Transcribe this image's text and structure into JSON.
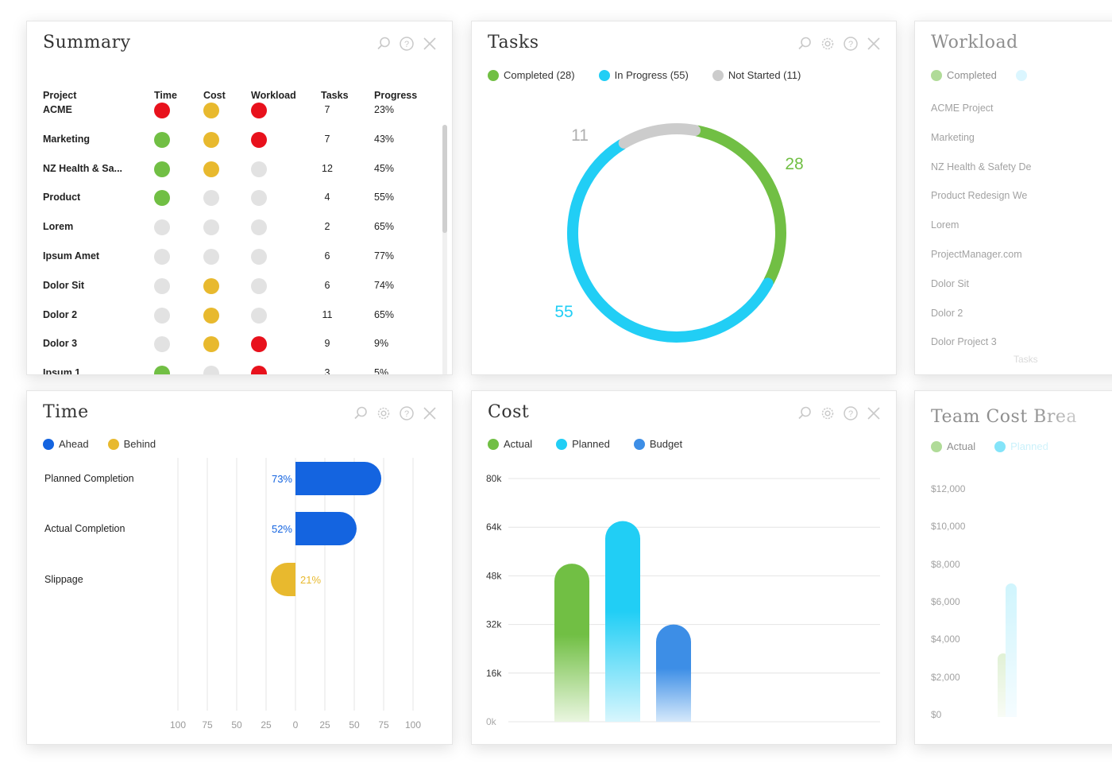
{
  "colors": {
    "red": "#e8111c",
    "yellow": "#e8b92e",
    "green": "#71bf44",
    "grey": "#e2e2e2",
    "cyan": "#21cef5",
    "blue": "#1464e0",
    "budget": "#3d8ee6",
    "donut_grey": "#cccccc"
  },
  "icons": [
    "search-icon",
    "settings-icon",
    "help-icon",
    "close-icon"
  ],
  "summary": {
    "title": "Summary",
    "columns": [
      "Project",
      "Time",
      "Cost",
      "Workload",
      "Tasks",
      "Progress"
    ],
    "rows": [
      {
        "project": "ACME",
        "time": "red",
        "cost": "yellow",
        "workload": "red",
        "tasks": "7",
        "progress": "23%"
      },
      {
        "project": "Marketing",
        "time": "green",
        "cost": "yellow",
        "workload": "red",
        "tasks": "7",
        "progress": "43%"
      },
      {
        "project": "NZ Health & Sa...",
        "time": "green",
        "cost": "yellow",
        "workload": "grey",
        "tasks": "12",
        "progress": "45%"
      },
      {
        "project": "Product",
        "time": "green",
        "cost": "grey",
        "workload": "grey",
        "tasks": "4",
        "progress": "55%"
      },
      {
        "project": "Lorem",
        "time": "grey",
        "cost": "grey",
        "workload": "grey",
        "tasks": "2",
        "progress": "65%"
      },
      {
        "project": "Ipsum Amet",
        "time": "grey",
        "cost": "grey",
        "workload": "grey",
        "tasks": "6",
        "progress": "77%"
      },
      {
        "project": "Dolor Sit",
        "time": "grey",
        "cost": "yellow",
        "workload": "grey",
        "tasks": "6",
        "progress": "74%"
      },
      {
        "project": "Dolor 2",
        "time": "grey",
        "cost": "yellow",
        "workload": "grey",
        "tasks": "11",
        "progress": "65%"
      },
      {
        "project": "Dolor 3",
        "time": "grey",
        "cost": "yellow",
        "workload": "red",
        "tasks": "9",
        "progress": "9%"
      },
      {
        "project": "Ipsum 1",
        "time": "green",
        "cost": "grey",
        "workload": "red",
        "tasks": "3",
        "progress": "5%"
      }
    ]
  },
  "tasks": {
    "title": "Tasks",
    "legend": [
      {
        "label": "Completed (28)",
        "color": "#71bf44"
      },
      {
        "label": "In Progress (55)",
        "color": "#21cef5"
      },
      {
        "label": "Not Started (11)",
        "color": "#cccccc"
      }
    ]
  },
  "workload": {
    "title": "Workload",
    "legend": [
      "Completed"
    ],
    "items": [
      "ACME Project",
      "Marketing",
      "NZ Health & Safety De",
      "Product Redesign We",
      "Lorem",
      "ProjectManager.com",
      "Dolor Sit",
      "Dolor 2",
      "Dolor Project 3"
    ],
    "footer": "Tasks"
  },
  "time": {
    "title": "Time",
    "legend": [
      {
        "label": "Ahead",
        "color": "#1464e0"
      },
      {
        "label": "Behind",
        "color": "#e8b92e"
      }
    ]
  },
  "cost": {
    "title": "Cost",
    "legend": [
      {
        "label": "Actual",
        "color": "#71bf44"
      },
      {
        "label": "Planned",
        "color": "#21cef5"
      },
      {
        "label": "Budget",
        "color": "#3d8ee6"
      }
    ]
  },
  "team_cost": {
    "title": "Team Cost Brea",
    "legend": [
      "Actual",
      "Planned"
    ],
    "y_ticks": [
      "$12,000",
      "$10,000",
      "$8,000",
      "$6,000",
      "$4,000",
      "$2,000",
      "$0"
    ]
  },
  "chart_data": [
    {
      "type": "pie",
      "donut": true,
      "categories": [
        "Completed",
        "In Progress",
        "Not Started"
      ],
      "values": [
        28,
        55,
        11
      ],
      "data_labels": [
        "28",
        "55",
        "11"
      ]
    },
    {
      "type": "bar",
      "orientation": "horizontal",
      "categories": [
        "Planned Completion",
        "Actual Completion",
        "Slippage"
      ],
      "series": [
        {
          "name": "Ahead",
          "values": [
            73,
            52,
            null
          ]
        },
        {
          "name": "Behind",
          "values": [
            null,
            null,
            -21
          ]
        }
      ],
      "data_labels": [
        "73%",
        "52%",
        "21%"
      ],
      "x_ticks": [
        "100",
        "75",
        "50",
        "25",
        "0",
        "25",
        "50",
        "75",
        "100"
      ],
      "xlim": [
        -100,
        100
      ]
    },
    {
      "type": "bar",
      "categories": [
        ""
      ],
      "series": [
        {
          "name": "Actual",
          "values": [
            52000
          ]
        },
        {
          "name": "Planned",
          "values": [
            66000
          ]
        },
        {
          "name": "Budget",
          "values": [
            32000
          ]
        }
      ],
      "y_ticks": [
        "80k",
        "64k",
        "48k",
        "32k",
        "16k",
        "0k"
      ],
      "ylim": [
        0,
        80000
      ]
    }
  ]
}
